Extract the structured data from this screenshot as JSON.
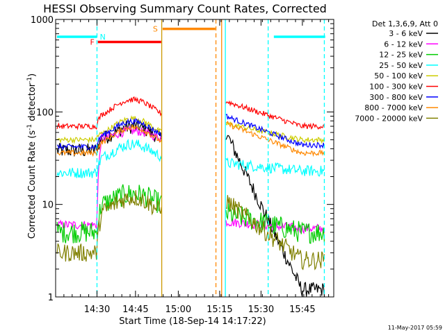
{
  "chart_data": {
    "type": "line",
    "title": "HESSI Observing Summary Count Rates, Corrected",
    "xlabel": "Start Time (18-Sep-14 14:17:22)",
    "ylabel_main": "Corrected Count Rate (s",
    "ylabel_sup1": "-1",
    "ylabel_mid": " detector",
    "ylabel_sup2": "-1",
    "ylabel_end": ")",
    "y_scale": "log",
    "ylim": [
      1,
      1000
    ],
    "xlim_minutes_after_1417": [
      0,
      97.5
    ],
    "x_ticks": [
      {
        "t": 14.5,
        "label": "14:30"
      },
      {
        "t": 28,
        "label": "14:45"
      },
      {
        "t": 43,
        "label": "15:00"
      },
      {
        "t": 57.5,
        "label": "15:15"
      },
      {
        "t": 72,
        "label": "15:30"
      },
      {
        "t": 86.5,
        "label": "15:45"
      }
    ],
    "y_ticks": [
      {
        "v": 1,
        "label": "1"
      },
      {
        "v": 10,
        "label": "10"
      },
      {
        "v": 100,
        "label": "100"
      },
      {
        "v": 1000,
        "label": "1000"
      }
    ],
    "legend_header": "Det 1,3,6,9, Att 0",
    "legend_placement": "right",
    "series": [
      {
        "name": "3 - 6 keV",
        "color": "#000000",
        "base": 45,
        "peak": 1.55,
        "post": 60,
        "postEnd": 1.2,
        "noise": 0.08
      },
      {
        "name": "6 - 12 keV",
        "color": "#ff00ff",
        "base": 48,
        "peak": 1.3,
        "post": 6.5,
        "postEnd": 5.5,
        "noise": 0.05,
        "pre": 6
      },
      {
        "name": "12 - 25 keV",
        "color": "#00cc00",
        "base": 9,
        "peak": 1.45,
        "post": 8,
        "postEnd": 5,
        "noise": 0.12,
        "pre": 5
      },
      {
        "name": "25 - 50 keV",
        "color": "#00ffff",
        "base": 28,
        "peak": 1.6,
        "post": 28,
        "postEnd": 23,
        "noise": 0.06,
        "pre": 22
      },
      {
        "name": "50 - 100 keV",
        "color": "#cccc00",
        "base": 50,
        "peak": 1.7,
        "post": 75,
        "postEnd": 50,
        "noise": 0.03,
        "pre": 50
      },
      {
        "name": "100 - 300 keV",
        "color": "#ff0000",
        "base": 80,
        "peak": 1.7,
        "post": 130,
        "postEnd": 70,
        "noise": 0.03,
        "pre": 70
      },
      {
        "name": "300 - 800 keV",
        "color": "#0000ff",
        "base": 48,
        "peak": 1.65,
        "post": 90,
        "postEnd": 44,
        "noise": 0.03,
        "pre": 42
      },
      {
        "name": "800 - 7000 keV",
        "color": "#ff8800",
        "base": 40,
        "peak": 1.7,
        "post": 75,
        "postEnd": 36,
        "noise": 0.03,
        "pre": 36
      },
      {
        "name": "7000 - 20000 keV",
        "color": "#808000",
        "base": 7,
        "peak": 1.7,
        "post": 11,
        "postEnd": 2.5,
        "noise": 0.1,
        "pre": 3
      }
    ],
    "flag_bars": [
      {
        "label": "N",
        "color": "#00ffff",
        "t0": 0.5,
        "t1": 14.5,
        "v": 650,
        "label_at": 15.5,
        "label_side": "right"
      },
      {
        "label": "F",
        "color": "#ff0000",
        "t0": 14.8,
        "t1": 37,
        "v": 570,
        "label_at": 13.6,
        "label_side": "left"
      },
      {
        "label": "S",
        "color": "#ff8800",
        "t0": 37.5,
        "t1": 56,
        "v": 790,
        "label_at": 35.8,
        "label_side": "left"
      },
      {
        "label": "",
        "color": "#00ffff",
        "t0": 76.5,
        "t1": 94.5,
        "v": 650
      }
    ],
    "vertical_lines": [
      {
        "t": 14.5,
        "color": "#00ffff",
        "style": "dashed"
      },
      {
        "t": 37.2,
        "color": "#cc9900",
        "style": "solid"
      },
      {
        "t": 56.2,
        "color": "#ff8800",
        "style": "dashed"
      },
      {
        "t": 58.2,
        "color": "#ff8800",
        "style": "solid"
      },
      {
        "t": 59.5,
        "color": "#00ffff",
        "style": "solid"
      },
      {
        "t": 74.5,
        "color": "#00ffff",
        "style": "dashed"
      },
      {
        "t": 94.2,
        "color": "#00ffff",
        "style": "dashed"
      }
    ],
    "footer_date": "11-May-2017 05:59"
  }
}
